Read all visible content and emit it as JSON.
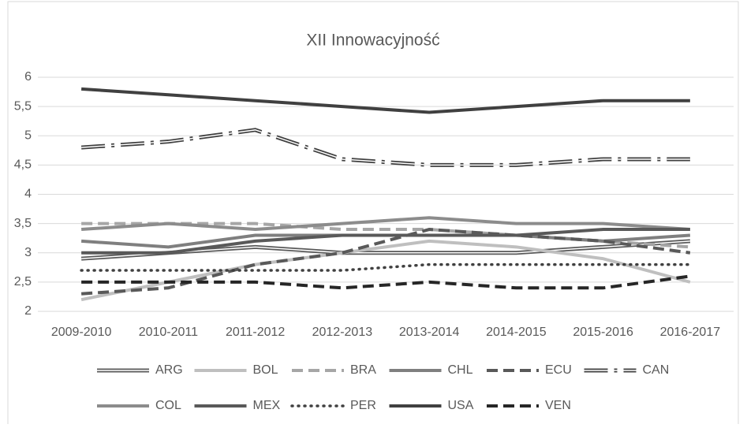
{
  "chart_data": {
    "type": "line",
    "title": "XII Innowacyjność",
    "categories": [
      "2009-2010",
      "2010-2011",
      "2011-2012",
      "2012-2013",
      "2013-2014",
      "2014-2015",
      "2015-2016",
      "2016-2017"
    ],
    "ylim": [
      2,
      6
    ],
    "yticks": [
      2,
      {
        "value": 2.5,
        "label": "2,5"
      },
      3,
      {
        "value": 3.5,
        "label": "3,5"
      },
      4,
      {
        "value": 4.5,
        "label": "4,5"
      },
      5,
      {
        "value": 5.5,
        "label": "5,5"
      },
      6
    ],
    "grid": true,
    "legend": "bottom",
    "series": [
      {
        "name": "ARG",
        "color": "#595959",
        "style": "double",
        "values": [
          2.9,
          3.0,
          3.1,
          3.0,
          3.0,
          3.0,
          3.1,
          3.2
        ]
      },
      {
        "name": "BOL",
        "color": "#bfbfbf",
        "style": "solid",
        "values": [
          2.2,
          2.5,
          2.8,
          3.0,
          3.2,
          3.1,
          2.9,
          2.5
        ]
      },
      {
        "name": "BRA",
        "color": "#a6a6a6",
        "style": "dashed",
        "values": [
          3.5,
          3.5,
          3.5,
          3.4,
          3.4,
          3.3,
          3.2,
          3.1
        ]
      },
      {
        "name": "CHL",
        "color": "#7f7f7f",
        "style": "solid",
        "values": [
          3.2,
          3.1,
          3.3,
          3.3,
          3.3,
          3.3,
          3.2,
          3.3
        ]
      },
      {
        "name": "ECU",
        "color": "#595959",
        "style": "dashed",
        "values": [
          2.3,
          2.4,
          2.8,
          3.0,
          3.4,
          3.3,
          3.2,
          3.0
        ]
      },
      {
        "name": "CAN",
        "color": "#404040",
        "style": "double-dashdot",
        "values": [
          4.8,
          4.9,
          5.1,
          4.6,
          4.5,
          4.5,
          4.6,
          4.6
        ]
      },
      {
        "name": "COL",
        "color": "#8c8c8c",
        "style": "solid",
        "values": [
          3.4,
          3.5,
          3.4,
          3.5,
          3.6,
          3.5,
          3.5,
          3.4
        ]
      },
      {
        "name": "MEX",
        "color": "#595959",
        "style": "solid",
        "values": [
          3.0,
          3.0,
          3.2,
          3.3,
          3.3,
          3.3,
          3.4,
          3.4
        ]
      },
      {
        "name": "PER",
        "color": "#404040",
        "style": "dotted",
        "values": [
          2.7,
          2.7,
          2.7,
          2.7,
          2.8,
          2.8,
          2.8,
          2.8
        ]
      },
      {
        "name": "USA",
        "color": "#404040",
        "style": "solid",
        "values": [
          5.8,
          5.7,
          5.6,
          5.5,
          5.4,
          5.5,
          5.6,
          5.6
        ]
      },
      {
        "name": "VEN",
        "color": "#262626",
        "style": "dashed",
        "values": [
          2.5,
          2.5,
          2.5,
          2.4,
          2.5,
          2.4,
          2.4,
          2.6
        ]
      }
    ]
  }
}
